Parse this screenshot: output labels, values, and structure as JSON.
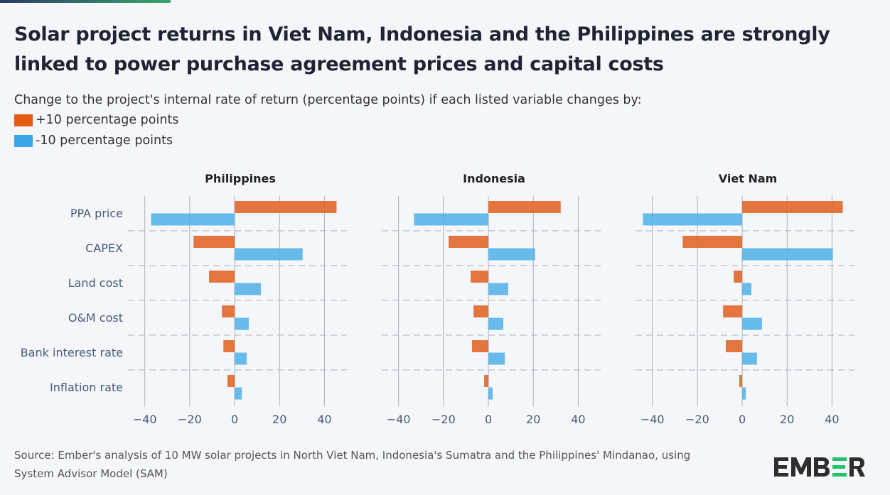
{
  "title": "Solar project returns in Viet Nam, Indonesia and the Philippines are strongly linked to power purchase agreement prices and capital costs",
  "subtitle": "Change to the project's internal rate of return (percentage points) if each listed variable changes by:",
  "legend": [
    {
      "label": "+10 percentage points",
      "color": "#e06a2e"
    },
    {
      "label": "-10 percentage points",
      "color": "#5ab4e8"
    }
  ],
  "source": "Source: Ember's analysis of 10 MW solar projects in North Viet Nam, Indonesia's Sumatra and the Philippines' Mindanao, using System Advisor Model (SAM)",
  "logo": "EMBER",
  "chart_data": {
    "type": "bar",
    "orientation": "horizontal",
    "categories": [
      "PPA price",
      "CAPEX",
      "Land cost",
      "O&M cost",
      "Bank interest rate",
      "Inflation rate"
    ],
    "xlim": [
      -47.5,
      50
    ],
    "xticks": [
      -40,
      -20,
      0,
      20,
      40
    ],
    "grid": true,
    "panels": [
      {
        "title": "Philippines",
        "series": [
          {
            "name": "+10 percentage points",
            "values": [
              45.4,
              -18.3,
              -11.4,
              -5.7,
              -5,
              -3.2
            ]
          },
          {
            "name": "-10 percentage points",
            "values": [
              -37.2,
              30.3,
              11.7,
              6.3,
              5.4,
              3.2
            ]
          }
        ]
      },
      {
        "title": "Indonesia",
        "series": [
          {
            "name": "+10 percentage points",
            "values": [
              32.2,
              -17.7,
              -7.9,
              -6.6,
              -7.3,
              -1.9
            ]
          },
          {
            "name": "-10 percentage points",
            "values": [
              -33.1,
              20.8,
              8.8,
              6.6,
              7.3,
              1.9
            ]
          }
        ]
      },
      {
        "title": "Viet Nam",
        "series": [
          {
            "name": "+10 percentage points",
            "values": [
              44.8,
              -26.5,
              -3.8,
              -8.5,
              -7.3,
              -1.3
            ]
          },
          {
            "name": "-10 percentage points",
            "values": [
              -44.2,
              40.4,
              4.1,
              8.8,
              6.6,
              1.6
            ]
          }
        ]
      }
    ]
  }
}
